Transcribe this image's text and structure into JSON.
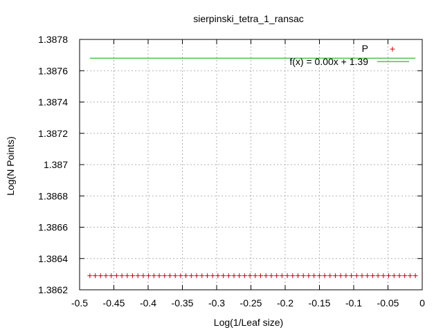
{
  "chart_data": {
    "type": "scatter",
    "title": "sierpinski_tetra_1_ransac",
    "xlabel": "Log(1/Leaf size)",
    "ylabel": "Log(N Points)",
    "xlim": [
      -0.5,
      0
    ],
    "ylim": [
      1.3862,
      1.3878
    ],
    "x_ticks": [
      -0.5,
      -0.45,
      -0.4,
      -0.35,
      -0.3,
      -0.25,
      -0.2,
      -0.15,
      -0.1,
      -0.05,
      0
    ],
    "x_tick_labels": [
      "-0.5",
      "-0.45",
      "-0.4",
      "-0.35",
      "-0.3",
      "-0.25",
      "-0.2",
      "-0.15",
      "-0.1",
      "-0.05",
      "0"
    ],
    "y_ticks": [
      1.3862,
      1.3864,
      1.3866,
      1.3868,
      1.387,
      1.3872,
      1.3874,
      1.3876,
      1.3878
    ],
    "y_tick_labels": [
      "1.3862",
      "1.3864",
      "1.3866",
      "1.3868",
      "1.387",
      "1.3872",
      "1.3874",
      "1.3876",
      "1.3878"
    ],
    "grid": true,
    "legend_placement": "top-right",
    "series": [
      {
        "name": "P",
        "kind": "points",
        "marker": "plus",
        "color": "#cc0000",
        "x_start": -0.485,
        "x_end": -0.01,
        "count": 62,
        "y": 1.38629
      },
      {
        "name": "f(x) = 0.00x + 1.39",
        "kind": "line",
        "color": "#00a000",
        "x": [
          -0.485,
          -0.01
        ],
        "y": [
          1.38768,
          1.38768
        ]
      }
    ]
  }
}
